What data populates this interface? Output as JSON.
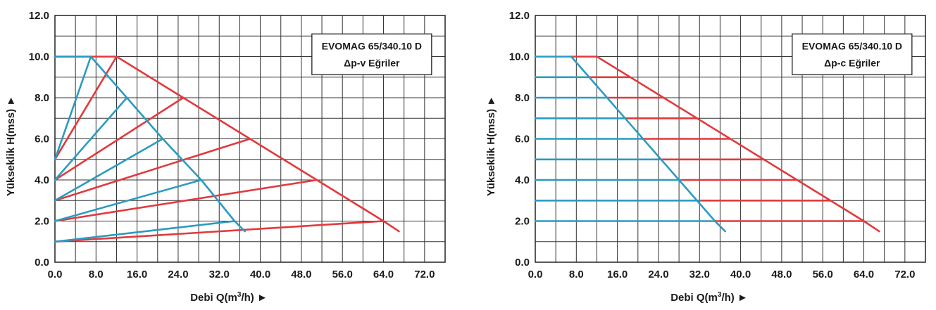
{
  "colors": {
    "red": "#e03a3e",
    "blue": "#2b9bc0",
    "grid": "#333333"
  },
  "chart_data": [
    {
      "type": "line",
      "title_line1": "EVOMAG 65/340.10 D",
      "title_line2": "Δp-v Eğriler",
      "xlabel_prefix": "Debi Q(m",
      "xlabel_sup": "3",
      "xlabel_suffix": "/h) ►",
      "ylabel": "Yükseklik H(mss) ►",
      "xlim": [
        0,
        76
      ],
      "ylim": [
        0,
        12
      ],
      "xticks": [
        "0.0",
        "8.0",
        "16.0",
        "24.0",
        "32.0",
        "40.0",
        "48.0",
        "56.0",
        "64.0",
        "72.0"
      ],
      "xtick_values": [
        0,
        8,
        16,
        24,
        32,
        40,
        48,
        56,
        64,
        72
      ],
      "yticks": [
        "0.0",
        "2.0",
        "4.0",
        "6.0",
        "8.0",
        "10.0",
        "12.0"
      ],
      "ytick_values": [
        0,
        2,
        4,
        6,
        8,
        10,
        12
      ],
      "grid": true,
      "series": [
        {
          "color": "red",
          "points": [
            [
              0,
              10
            ],
            [
              12,
              10
            ],
            [
              25,
              8
            ],
            [
              38,
              6
            ],
            [
              51,
              4
            ],
            [
              64,
              2
            ],
            [
              67,
              1.5
            ]
          ]
        },
        {
          "color": "red",
          "points": [
            [
              0,
              5
            ],
            [
              12,
              10
            ]
          ]
        },
        {
          "color": "red",
          "points": [
            [
              0,
              4
            ],
            [
              25,
              8
            ]
          ]
        },
        {
          "color": "red",
          "points": [
            [
              0,
              3
            ],
            [
              38,
              6
            ]
          ]
        },
        {
          "color": "red",
          "points": [
            [
              0,
              2
            ],
            [
              51,
              4
            ]
          ]
        },
        {
          "color": "red",
          "points": [
            [
              0,
              1
            ],
            [
              64,
              2
            ]
          ]
        },
        {
          "color": "blue",
          "points": [
            [
              0,
              10
            ],
            [
              7,
              10
            ],
            [
              14,
              8
            ],
            [
              21,
              6
            ],
            [
              28.5,
              4
            ],
            [
              35,
              2
            ],
            [
              37,
              1.5
            ]
          ]
        },
        {
          "color": "blue",
          "points": [
            [
              0,
              5
            ],
            [
              7,
              10
            ]
          ]
        },
        {
          "color": "blue",
          "points": [
            [
              0,
              4
            ],
            [
              14,
              8
            ]
          ]
        },
        {
          "color": "blue",
          "points": [
            [
              0,
              3
            ],
            [
              21,
              6
            ]
          ]
        },
        {
          "color": "blue",
          "points": [
            [
              0,
              2
            ],
            [
              28.5,
              4
            ]
          ]
        },
        {
          "color": "blue",
          "points": [
            [
              0,
              1
            ],
            [
              35,
              2
            ]
          ]
        }
      ]
    },
    {
      "type": "line",
      "title_line1": "EVOMAG 65/340.10 D",
      "title_line2": "Δp-c Eğriler",
      "xlabel_prefix": "Debi Q(m",
      "xlabel_sup": "3",
      "xlabel_suffix": "/h) ►",
      "ylabel": "Yükseklik H(mss) ►",
      "xlim": [
        0,
        76
      ],
      "ylim": [
        0,
        12
      ],
      "xticks": [
        "0.0",
        "8.0",
        "16.0",
        "24.0",
        "32.0",
        "40.0",
        "48.0",
        "56.0",
        "64.0",
        "72.0"
      ],
      "xtick_values": [
        0,
        8,
        16,
        24,
        32,
        40,
        48,
        56,
        64,
        72
      ],
      "yticks": [
        "0.0",
        "2.0",
        "4.0",
        "6.0",
        "8.0",
        "10.0",
        "12.0"
      ],
      "ytick_values": [
        0,
        2,
        4,
        6,
        8,
        10,
        12
      ],
      "grid": true,
      "series": [
        {
          "color": "red",
          "points": [
            [
              12,
              10
            ],
            [
              64,
              2
            ],
            [
              67,
              1.5
            ]
          ]
        },
        {
          "color": "red",
          "points": [
            [
              7,
              10
            ],
            [
              12,
              10
            ]
          ]
        },
        {
          "color": "red",
          "points": [
            [
              10.5,
              9
            ],
            [
              18.5,
              9
            ]
          ]
        },
        {
          "color": "red",
          "points": [
            [
              14,
              8
            ],
            [
              25,
              8
            ]
          ]
        },
        {
          "color": "red",
          "points": [
            [
              17.5,
              7
            ],
            [
              31.5,
              7
            ]
          ]
        },
        {
          "color": "red",
          "points": [
            [
              21,
              6
            ],
            [
              38,
              6
            ]
          ]
        },
        {
          "color": "red",
          "points": [
            [
              24.5,
              5
            ],
            [
              44.5,
              5
            ]
          ]
        },
        {
          "color": "red",
          "points": [
            [
              28.5,
              4
            ],
            [
              51,
              4
            ]
          ]
        },
        {
          "color": "red",
          "points": [
            [
              32,
              3
            ],
            [
              57.5,
              3
            ]
          ]
        },
        {
          "color": "red",
          "points": [
            [
              35,
              2
            ],
            [
              64,
              2
            ]
          ]
        },
        {
          "color": "blue",
          "points": [
            [
              7,
              10
            ],
            [
              35,
              2
            ],
            [
              37,
              1.5
            ]
          ]
        },
        {
          "color": "blue",
          "points": [
            [
              0,
              10
            ],
            [
              7,
              10
            ]
          ]
        },
        {
          "color": "blue",
          "points": [
            [
              0,
              9
            ],
            [
              10.5,
              9
            ]
          ]
        },
        {
          "color": "blue",
          "points": [
            [
              0,
              8
            ],
            [
              14,
              8
            ]
          ]
        },
        {
          "color": "blue",
          "points": [
            [
              0,
              7
            ],
            [
              17.5,
              7
            ]
          ]
        },
        {
          "color": "blue",
          "points": [
            [
              0,
              6
            ],
            [
              21,
              6
            ]
          ]
        },
        {
          "color": "blue",
          "points": [
            [
              0,
              5
            ],
            [
              24.5,
              5
            ]
          ]
        },
        {
          "color": "blue",
          "points": [
            [
              0,
              4
            ],
            [
              28.5,
              4
            ]
          ]
        },
        {
          "color": "blue",
          "points": [
            [
              0,
              3
            ],
            [
              32,
              3
            ]
          ]
        },
        {
          "color": "blue",
          "points": [
            [
              0,
              2
            ],
            [
              35,
              2
            ]
          ]
        }
      ]
    }
  ]
}
